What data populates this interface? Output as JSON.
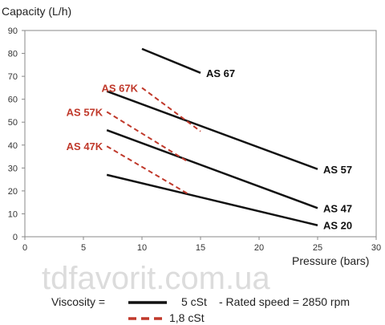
{
  "watermark": "tdfavorit.com.ua",
  "legend": {
    "prefix": "Viscosity =",
    "solid_label": "5 cSt",
    "note": "- Rated speed = 2850 rpm",
    "dashed_label": "1,8 cSt",
    "solid_color": "#111111",
    "dashed_color": "#c0392b"
  },
  "chart_data": {
    "type": "line",
    "ylabel": "Capacity (L/h)",
    "xlabel": "Pressure (bars)",
    "xlim": [
      0,
      30
    ],
    "ylim": [
      0,
      90
    ],
    "xticks": [
      0,
      5,
      10,
      15,
      20,
      25,
      30
    ],
    "yticks": [
      0,
      10,
      20,
      30,
      40,
      50,
      60,
      70,
      80,
      90
    ],
    "grid": false,
    "series": [
      {
        "name": "AS 67",
        "viscosity": "5 cSt",
        "style": "solid",
        "color": "#111111",
        "x": [
          10,
          15
        ],
        "y": [
          82,
          71.5
        ]
      },
      {
        "name": "AS 57",
        "viscosity": "5 cSt",
        "style": "solid",
        "color": "#111111",
        "x": [
          7,
          25
        ],
        "y": [
          63.5,
          29.5
        ]
      },
      {
        "name": "AS 47",
        "viscosity": "5 cSt",
        "style": "solid",
        "color": "#111111",
        "x": [
          7,
          25
        ],
        "y": [
          46.5,
          12.5
        ]
      },
      {
        "name": "AS 20",
        "viscosity": "5 cSt",
        "style": "solid",
        "color": "#111111",
        "x": [
          7,
          25
        ],
        "y": [
          27,
          5
        ]
      },
      {
        "name": "AS 67K",
        "viscosity": "1,8 cSt",
        "style": "dashed",
        "color": "#c0392b",
        "x": [
          10,
          15
        ],
        "y": [
          65,
          46
        ]
      },
      {
        "name": "AS 57K",
        "viscosity": "1,8 cSt",
        "style": "dashed",
        "color": "#c0392b",
        "x": [
          7,
          14
        ],
        "y": [
          54.5,
          32.5
        ]
      },
      {
        "name": "AS 47K",
        "viscosity": "1,8 cSt",
        "style": "dashed",
        "color": "#c0392b",
        "x": [
          7,
          14
        ],
        "y": [
          39.5,
          18.5
        ]
      }
    ]
  }
}
